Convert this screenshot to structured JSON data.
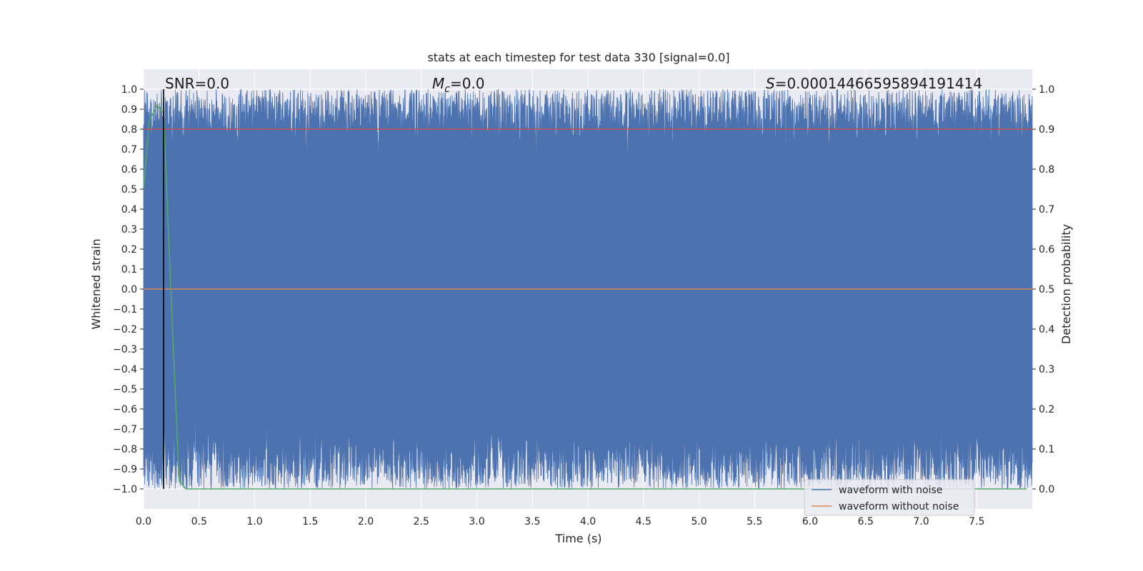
{
  "chart_data": {
    "type": "line",
    "title": "stats at each timestep for test data 330 [signal=0.0]",
    "xlabel": "Time (s)",
    "ylabel": "Whitened strain",
    "ylabel_right": "Detection probability",
    "xlim": [
      0.0,
      8.0
    ],
    "ylim": [
      -1.1,
      1.1
    ],
    "ylim_right": [
      -0.05,
      1.05
    ],
    "x_ticks": [
      "0.0",
      "0.5",
      "1.0",
      "1.5",
      "2.0",
      "2.5",
      "3.0",
      "3.5",
      "4.0",
      "4.5",
      "5.0",
      "5.5",
      "6.0",
      "6.5",
      "7.0",
      "7.5"
    ],
    "y_ticks": [
      "1.0",
      "0.9",
      "0.8",
      "0.7",
      "0.6",
      "0.5",
      "0.4",
      "0.3",
      "0.2",
      "0.1",
      "0.0",
      "−0.1",
      "−0.2",
      "−0.3",
      "−0.4",
      "−0.5",
      "−0.6",
      "−0.7",
      "−0.8",
      "−0.9",
      "−1.0"
    ],
    "y_ticks_right": [
      "1.0",
      "0.9",
      "0.8",
      "0.7",
      "0.6",
      "0.5",
      "0.4",
      "0.3",
      "0.2",
      "0.1",
      "0.0"
    ],
    "grid": true,
    "annotations": {
      "snr": "SNR=0.0",
      "mc_symbol": "M",
      "mc_subscript": "c",
      "mc_value": "=0.0",
      "s_symbol": "S",
      "s_value": "=0.00014466595894191414"
    },
    "legend_position": "lower-right",
    "series": [
      {
        "name": "waveform with noise",
        "color": "#4c72b0",
        "axis": "left",
        "kind": "noise",
        "x_range": [
          0.0,
          8.0
        ],
        "y_range": [
          -1.0,
          1.0
        ]
      },
      {
        "name": "waveform without noise",
        "color": "#dd8452",
        "axis": "left",
        "x": [
          0.0,
          8.0
        ],
        "values": [
          0.0,
          0.0
        ]
      },
      {
        "axis": "right",
        "color": "#55a868",
        "x": [
          0.0,
          0.05,
          0.12,
          0.18,
          0.26,
          0.32,
          0.38,
          7.95
        ],
        "values": [
          0.75,
          0.92,
          0.96,
          0.94,
          0.4,
          0.02,
          0.0,
          0.0
        ]
      },
      {
        "axis": "right",
        "color": "#c44e52",
        "x": [
          0.0,
          8.0
        ],
        "values": [
          0.9,
          0.9
        ]
      }
    ],
    "vline_x": 0.18,
    "vline_color": "#000000"
  }
}
